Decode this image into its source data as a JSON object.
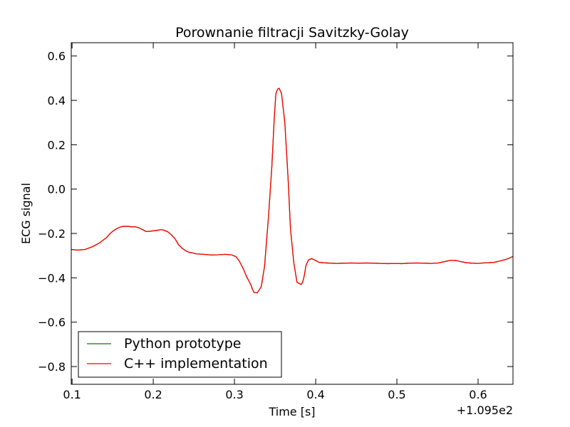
{
  "chart_data": {
    "type": "line",
    "title": "Porownanie filtracji Savitzky-Golay",
    "xlabel": "Time [s]",
    "ylabel": "ECG signal",
    "x_offset_label": "+1.095e2",
    "xlim": [
      0.099,
      0.643
    ],
    "ylim": [
      -0.88,
      0.66
    ],
    "x_ticks": [
      0.1,
      0.2,
      0.3,
      0.4,
      0.5,
      0.6
    ],
    "x_tick_labels": [
      "0.1",
      "0.2",
      "0.3",
      "0.4",
      "0.5",
      "0.6"
    ],
    "y_ticks": [
      0.6,
      0.4,
      0.2,
      0.0,
      -0.2,
      -0.4,
      -0.6,
      -0.8
    ],
    "y_tick_labels": [
      "0.6",
      "0.4",
      "0.2",
      "0.0",
      "−0.2",
      "−0.4",
      "−0.6",
      "−0.8"
    ],
    "grid": false,
    "legend_position": "lower-left",
    "x": [
      0.099,
      0.107,
      0.116,
      0.125,
      0.134,
      0.142,
      0.147,
      0.151,
      0.155,
      0.16,
      0.164,
      0.169,
      0.173,
      0.178,
      0.182,
      0.187,
      0.191,
      0.196,
      0.2,
      0.205,
      0.209,
      0.213,
      0.218,
      0.222,
      0.227,
      0.231,
      0.235,
      0.24,
      0.244,
      0.249,
      0.253,
      0.262,
      0.271,
      0.28,
      0.289,
      0.297,
      0.302,
      0.306,
      0.311,
      0.315,
      0.32,
      0.322,
      0.324,
      0.328,
      0.333,
      0.337,
      0.342,
      0.346,
      0.349,
      0.351,
      0.353,
      0.355,
      0.358,
      0.362,
      0.366,
      0.369,
      0.373,
      0.377,
      0.382,
      0.384,
      0.386,
      0.388,
      0.391,
      0.395,
      0.4,
      0.404,
      0.409,
      0.418,
      0.426,
      0.435,
      0.444,
      0.453,
      0.462,
      0.471,
      0.48,
      0.489,
      0.497,
      0.506,
      0.515,
      0.524,
      0.533,
      0.542,
      0.551,
      0.56,
      0.566,
      0.573,
      0.58,
      0.586,
      0.593,
      0.6,
      0.606,
      0.613,
      0.62,
      0.626,
      0.633,
      0.638,
      0.643
    ],
    "series": [
      {
        "name": "Python prototype",
        "color": "#008000",
        "values": [
          -0.272,
          -0.275,
          -0.272,
          -0.26,
          -0.242,
          -0.22,
          -0.2,
          -0.188,
          -0.178,
          -0.17,
          -0.168,
          -0.168,
          -0.17,
          -0.17,
          -0.174,
          -0.183,
          -0.191,
          -0.19,
          -0.188,
          -0.186,
          -0.183,
          -0.185,
          -0.193,
          -0.205,
          -0.225,
          -0.25,
          -0.265,
          -0.278,
          -0.285,
          -0.288,
          -0.292,
          -0.294,
          -0.297,
          -0.296,
          -0.294,
          -0.297,
          -0.305,
          -0.325,
          -0.36,
          -0.395,
          -0.43,
          -0.45,
          -0.466,
          -0.468,
          -0.44,
          -0.35,
          -0.12,
          0.1,
          0.32,
          0.43,
          0.45,
          0.455,
          0.43,
          0.3,
          0.05,
          -0.18,
          -0.33,
          -0.42,
          -0.43,
          -0.42,
          -0.39,
          -0.345,
          -0.32,
          -0.313,
          -0.322,
          -0.33,
          -0.332,
          -0.334,
          -0.335,
          -0.334,
          -0.333,
          -0.334,
          -0.333,
          -0.334,
          -0.335,
          -0.336,
          -0.335,
          -0.336,
          -0.334,
          -0.333,
          -0.334,
          -0.335,
          -0.333,
          -0.326,
          -0.321,
          -0.322,
          -0.328,
          -0.332,
          -0.334,
          -0.335,
          -0.333,
          -0.332,
          -0.33,
          -0.325,
          -0.318,
          -0.312,
          -0.303
        ]
      },
      {
        "name": "C++ implementation",
        "color": "#ff0000",
        "values": [
          -0.272,
          -0.275,
          -0.272,
          -0.26,
          -0.242,
          -0.22,
          -0.2,
          -0.188,
          -0.178,
          -0.17,
          -0.168,
          -0.168,
          -0.17,
          -0.17,
          -0.174,
          -0.183,
          -0.191,
          -0.19,
          -0.188,
          -0.186,
          -0.183,
          -0.185,
          -0.193,
          -0.205,
          -0.225,
          -0.25,
          -0.265,
          -0.278,
          -0.285,
          -0.288,
          -0.292,
          -0.294,
          -0.297,
          -0.296,
          -0.294,
          -0.297,
          -0.305,
          -0.325,
          -0.36,
          -0.395,
          -0.43,
          -0.45,
          -0.466,
          -0.468,
          -0.44,
          -0.35,
          -0.12,
          0.1,
          0.32,
          0.43,
          0.45,
          0.455,
          0.43,
          0.3,
          0.05,
          -0.18,
          -0.33,
          -0.42,
          -0.43,
          -0.42,
          -0.39,
          -0.345,
          -0.32,
          -0.313,
          -0.322,
          -0.33,
          -0.332,
          -0.334,
          -0.335,
          -0.334,
          -0.333,
          -0.334,
          -0.333,
          -0.334,
          -0.335,
          -0.336,
          -0.335,
          -0.336,
          -0.334,
          -0.333,
          -0.334,
          -0.335,
          -0.333,
          -0.326,
          -0.321,
          -0.322,
          -0.328,
          -0.332,
          -0.334,
          -0.335,
          -0.333,
          -0.332,
          -0.33,
          -0.325,
          -0.318,
          -0.312,
          -0.303
        ]
      }
    ]
  }
}
